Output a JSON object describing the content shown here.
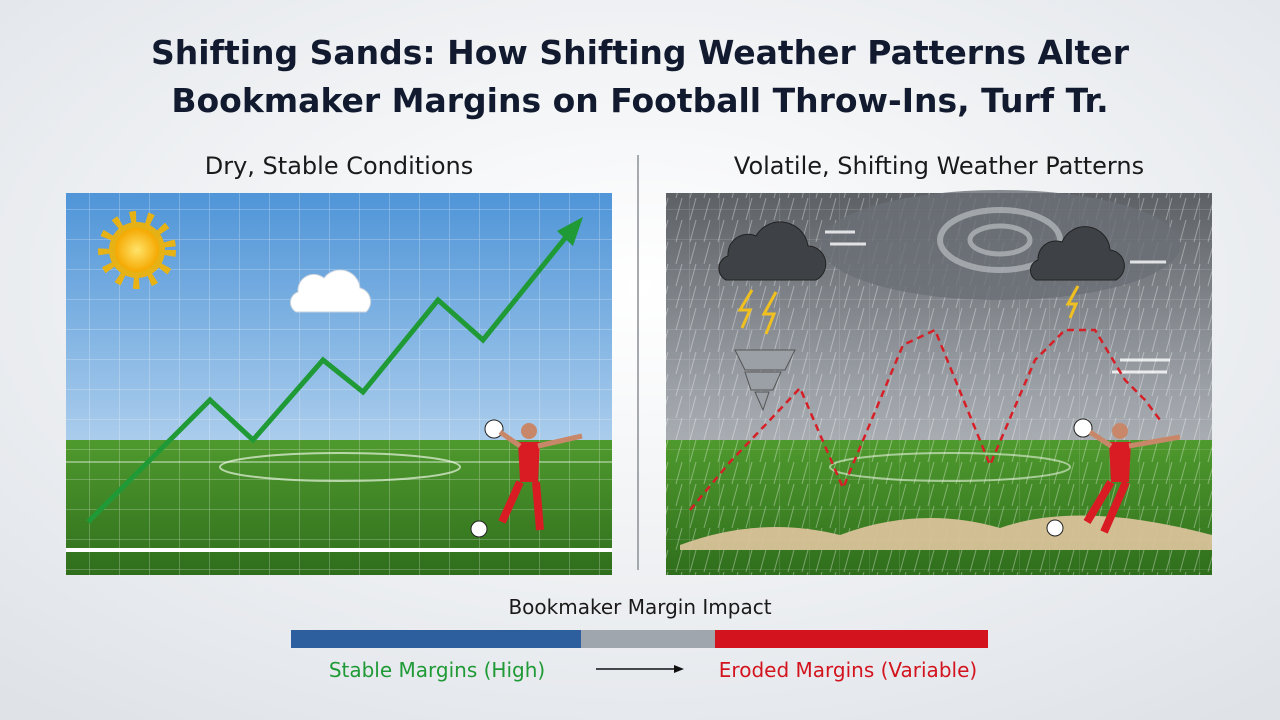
{
  "header": {
    "title_lines": [
      "Shifting Sands: How Shifting Weather Patterns Alter",
      "Bookmaker Margins on Football Throw-Ins, Turf Tr."
    ]
  },
  "panels": [
    {
      "heading": "Dry, Stable Conditions"
    },
    {
      "heading": "Volatile, Shifting Weather Patterns"
    }
  ],
  "legend": {
    "title": "Bookmaker Margin Impact",
    "left_label": "Stable Margins (High)",
    "right_label": "Eroded Margins (Variable)"
  }
}
